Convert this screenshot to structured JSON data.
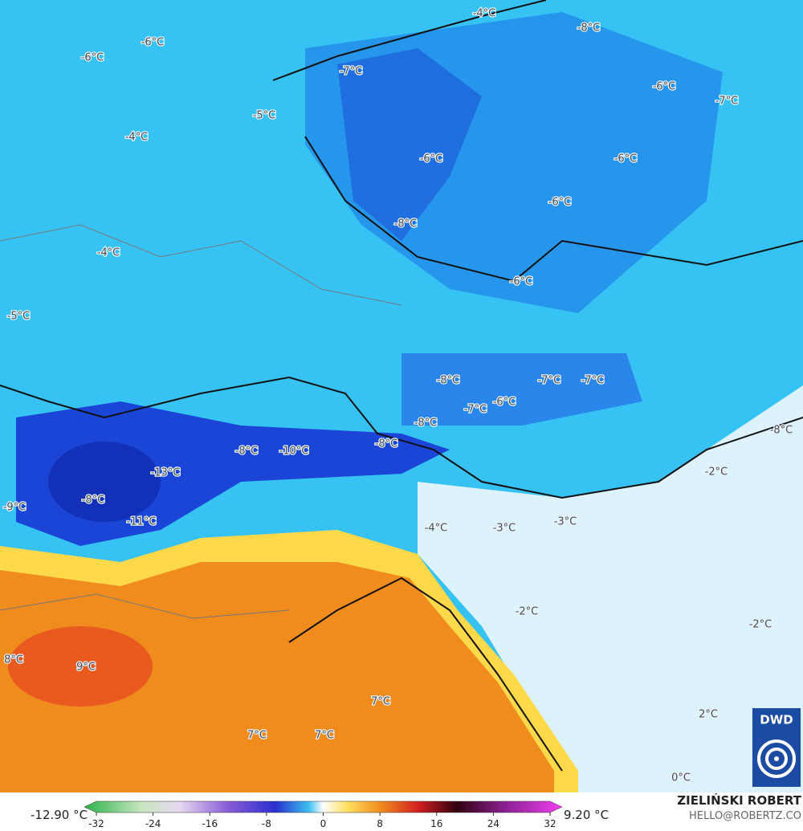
{
  "map": {
    "labels": [
      "-4°C",
      "-8°C",
      "-6°C",
      "-6°C",
      "-7°C",
      "-6°C",
      "-7°C",
      "-5°C",
      "-4°C",
      "-6°C",
      "-6°C",
      "-6°C",
      "-8°C",
      "-4°C",
      "-6°C",
      "-5°C",
      "-8°C",
      "-7°C",
      "-7°C",
      "-6°C",
      "-7°C",
      "-8°C",
      "-8°C",
      "-8°C",
      "-8°C",
      "-10°C",
      "-13°C",
      "-2°C",
      "-9°C",
      "-8°C",
      "-11°C",
      "-4°C",
      "-3°C",
      "-3°C",
      "-2°C",
      "-2°C",
      "8°C",
      "9°C",
      "7°C",
      "7°C",
      "7°C",
      "2°C",
      "0°C"
    ]
  },
  "colorbar": {
    "min_label": "-12.90 °C",
    "max_label": "9.20 °C",
    "ticks": [
      -32,
      -24,
      -16,
      -8,
      0,
      8,
      16,
      24,
      32
    ],
    "range": [
      -32,
      32
    ]
  },
  "credit": {
    "name": "ZIELIŃSKI ROBERT",
    "email": "HELLO@ROBERTZ.CO"
  },
  "logo": "DWD"
}
